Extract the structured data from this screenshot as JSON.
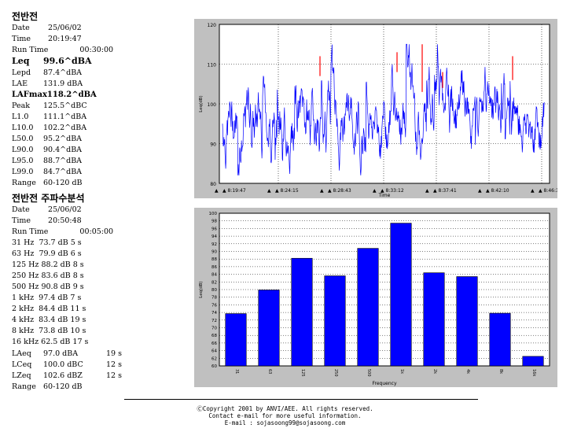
{
  "section1": {
    "title": "전반전",
    "date_label": "Date",
    "date": "25/06/02",
    "time_label": "Time",
    "time": "20:19:47",
    "runtime_label": "Run Time",
    "runtime": "00:30:00",
    "leq_label": "Leq",
    "leq": "99.6^dBA",
    "stats": [
      {
        "label": "Lepd",
        "value": "87.4^dBA"
      },
      {
        "label": "LAE",
        "value": "131.9 dBA"
      }
    ],
    "lafmax": "LAFmax118.2^dBA",
    "stats2": [
      {
        "label": "Peak",
        "value": "125.5^dBC"
      },
      {
        "label": "L1.0",
        "value": "111.1^dBA"
      },
      {
        "label": "L10.0",
        "value": "102.2^dBA"
      },
      {
        "label": "L50.0",
        "value": "95.2^dBA"
      },
      {
        "label": "L90.0",
        "value": "90.4^dBA"
      },
      {
        "label": "L95.0",
        "value": "88.7^dBA"
      },
      {
        "label": "L99.0",
        "value": "84.7^dBA"
      },
      {
        "label": "Range",
        "value": "60-120 dB"
      }
    ]
  },
  "section2": {
    "title": "전반전 주파수분석",
    "date_label": "Date",
    "date": "25/06/02",
    "time_label": "Time",
    "time": "20:50:48",
    "runtime_label": "Run Time",
    "runtime": "00:05:00",
    "bands": [
      "31 Hz  73.7 dB 5 s",
      "63 Hz  79.9 dB 6 s",
      "125 Hz 88.2 dB 8 s",
      "250 Hz 83.6 dB 8 s",
      "500 Hz 90.8 dB 9 s",
      "1 kHz  97.4 dB 7 s",
      "2 kHz  84.4 dB 11 s",
      "4 kHz  83.4 dB 19 s",
      "8 kHz  73.8 dB 10 s",
      "16 kHz 62.5 dB 17 s"
    ],
    "totals": [
      {
        "label": "LAeq",
        "value": "97.0 dBA",
        "dur": "19 s"
      },
      {
        "label": "LCeq",
        "value": "100.0 dBC",
        "dur": "12 s"
      },
      {
        "label": "LZeq",
        "value": "102.6 dBZ",
        "dur": "12 s"
      }
    ],
    "range_label": "Range",
    "range": "60-120 dB"
  },
  "chart_data": [
    {
      "type": "line",
      "ylabel": "Leq(dB)",
      "xlabel": "Time",
      "ylim": [
        80,
        120
      ],
      "yticks": [
        80,
        90,
        100,
        110,
        120
      ],
      "xticks": [
        "8:19:47",
        "8:24:15",
        "8:28:43",
        "8:33:12",
        "8:37:41",
        "8:42:10",
        "8:46:39"
      ],
      "color": "#0000ff",
      "peak_color": "#ff0000",
      "grid": true
    },
    {
      "type": "bar",
      "ylabel": "Leq(dB)",
      "xlabel": "Frequency",
      "ylim": [
        60,
        100
      ],
      "ytick_step": 2,
      "categories": [
        "31",
        "63",
        "125",
        "250",
        "500",
        "1k",
        "2k",
        "4k",
        "8k",
        "16k"
      ],
      "values": [
        73.7,
        79.9,
        88.2,
        83.6,
        90.8,
        97.4,
        84.4,
        83.4,
        73.8,
        62.5
      ],
      "color": "#0000ff",
      "grid": true
    }
  ],
  "footer": {
    "line1": "Copyright 2001 by ANVI/AEE. All rights reserved.",
    "line2": "Contact e-mail for more useful information.",
    "line3": "E-mail : sojasoong99@sojasoong.com"
  }
}
